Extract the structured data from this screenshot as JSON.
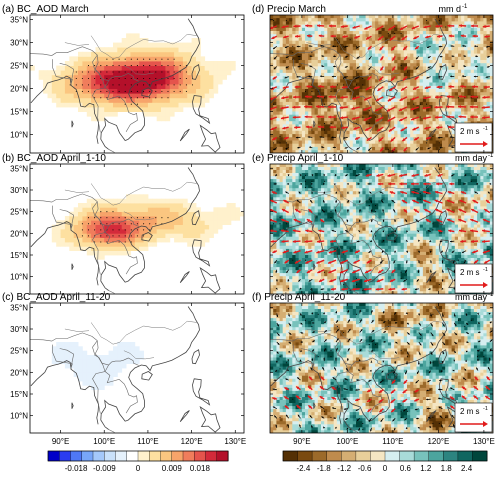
{
  "chart_data": {
    "type": "heatmap",
    "lat_ticks": [
      "35°N",
      "30°N",
      "25°N",
      "20°N",
      "15°N",
      "10°N"
    ],
    "lat_values": [
      35,
      30,
      25,
      20,
      15,
      10
    ],
    "lon_ticks": [
      "90°E",
      "100°E",
      "110°E",
      "120°E",
      "130°E"
    ],
    "lon_values": [
      90,
      100,
      110,
      120,
      130
    ],
    "xlim": [
      83,
      132
    ],
    "ylim": [
      6,
      36
    ],
    "panels": [
      {
        "id": "a",
        "label": "(a)  BC_AOD  March",
        "unit": "",
        "field": "aod",
        "hotspots": [
          {
            "lon": 104,
            "lat": 21.5,
            "amp": 0.022,
            "sx": 8,
            "sy": 3
          },
          {
            "lon": 112,
            "lat": 23,
            "amp": 0.012,
            "sx": 7,
            "sy": 3.5
          }
        ]
      },
      {
        "id": "b",
        "label": "(b)  BC_AOD  April_1-10",
        "unit": "",
        "field": "aod",
        "hotspots": [
          {
            "lon": 101,
            "lat": 20.5,
            "amp": 0.016,
            "sx": 5,
            "sy": 2.5
          },
          {
            "lon": 110,
            "lat": 23,
            "amp": 0.008,
            "sx": 10,
            "sy": 3
          }
        ]
      },
      {
        "id": "c",
        "label": "(c)  BC_AOD  April_11-20",
        "unit": "",
        "field": "aod",
        "hotspots": [
          {
            "lon": 98,
            "lat": 22,
            "amp": -0.004,
            "sx": 12,
            "sy": 6
          }
        ]
      },
      {
        "id": "d",
        "label": "(d)  Precip  March",
        "unit": "mm d",
        "unit_sup": "-1",
        "field": "precip",
        "mode": "dry",
        "ref_vector": "2 m s",
        "ref_sup": "-1"
      },
      {
        "id": "e",
        "label": "(e)  Precip  April_1-10",
        "unit": "mm day",
        "unit_sup": "-1",
        "field": "precip",
        "mode": "mixed",
        "ref_vector": "2 m s",
        "ref_sup": "-1"
      },
      {
        "id": "f",
        "label": "(f)  Precip  April_11-20",
        "unit": "mm day",
        "unit_sup": "-1",
        "field": "precip",
        "mode": "mixed",
        "ref_vector": "2 m s",
        "ref_sup": "-1"
      }
    ],
    "colorbars": [
      {
        "name": "BC_AOD",
        "tick_labels": [
          "-0.018",
          "-0.009",
          "0",
          "0.009",
          "0.018"
        ],
        "colors": [
          "#0000c8",
          "#2a3cf0",
          "#4f78f5",
          "#78a6f8",
          "#a4c8fa",
          "#c9e1fb",
          "#e5f1fc",
          "#ffffff",
          "#fff1cc",
          "#fde0a0",
          "#fbc680",
          "#f7a46a",
          "#f07d5c",
          "#e5544c",
          "#d42a3a",
          "#b4102a"
        ]
      },
      {
        "name": "Precip",
        "tick_labels": [
          "-2.4",
          "-1.8",
          "-1.2",
          "-0.6",
          "0",
          "0.6",
          "1.2",
          "1.8",
          "2.4"
        ],
        "colors": [
          "#543005",
          "#7a4a10",
          "#9c6a2a",
          "#bf8b4d",
          "#d5ae73",
          "#e8cf9a",
          "#f5e6c3",
          "#d6eef0",
          "#a8dbd9",
          "#78c2bc",
          "#4ca59e",
          "#2c8480",
          "#106660",
          "#00463c"
        ]
      }
    ]
  }
}
